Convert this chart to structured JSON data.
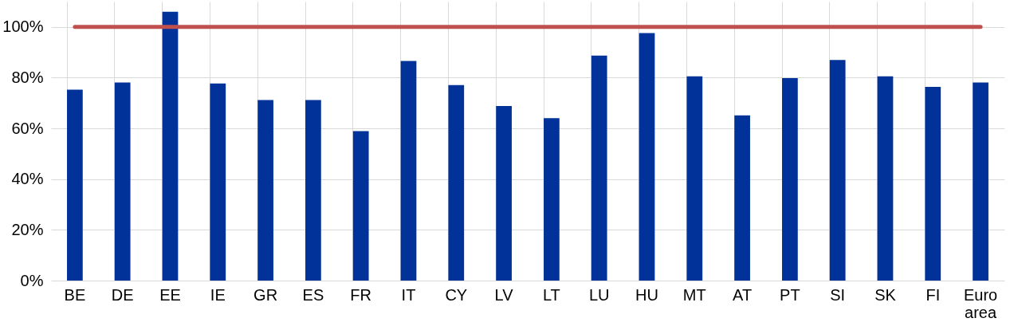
{
  "chart_data": {
    "type": "bar",
    "categories": [
      "BE",
      "DE",
      "EE",
      "IE",
      "GR",
      "ES",
      "FR",
      "IT",
      "CY",
      "LV",
      "LT",
      "LU",
      "HU",
      "MT",
      "AT",
      "PT",
      "SI",
      "SK",
      "FI",
      "Euro area"
    ],
    "series": [
      {
        "color": "#003299",
        "values": [
          75.3,
          78.1,
          106,
          77.7,
          71.2,
          71.2,
          58.9,
          86.6,
          77.1,
          68.8,
          64.0,
          88.7,
          97.6,
          80.5,
          65.1,
          79.8,
          87.0,
          80.5,
          76.4,
          78.1
        ]
      },
      {
        "type": "line",
        "color": "#c0504d",
        "values": [
          100,
          100,
          100,
          100,
          100,
          100,
          100,
          100,
          100,
          100,
          100,
          100,
          100,
          100,
          100,
          100,
          100,
          100,
          100,
          100
        ]
      }
    ],
    "ylim": [
      0,
      110
    ],
    "yticks": [
      {
        "value": 0,
        "label": "0%"
      },
      {
        "value": 20,
        "label": "20%"
      },
      {
        "value": 40,
        "label": "40%"
      },
      {
        "value": 60,
        "label": "60%"
      },
      {
        "value": 80,
        "label": "80%"
      },
      {
        "value": 100,
        "label": "100%"
      }
    ],
    "grid": true
  }
}
